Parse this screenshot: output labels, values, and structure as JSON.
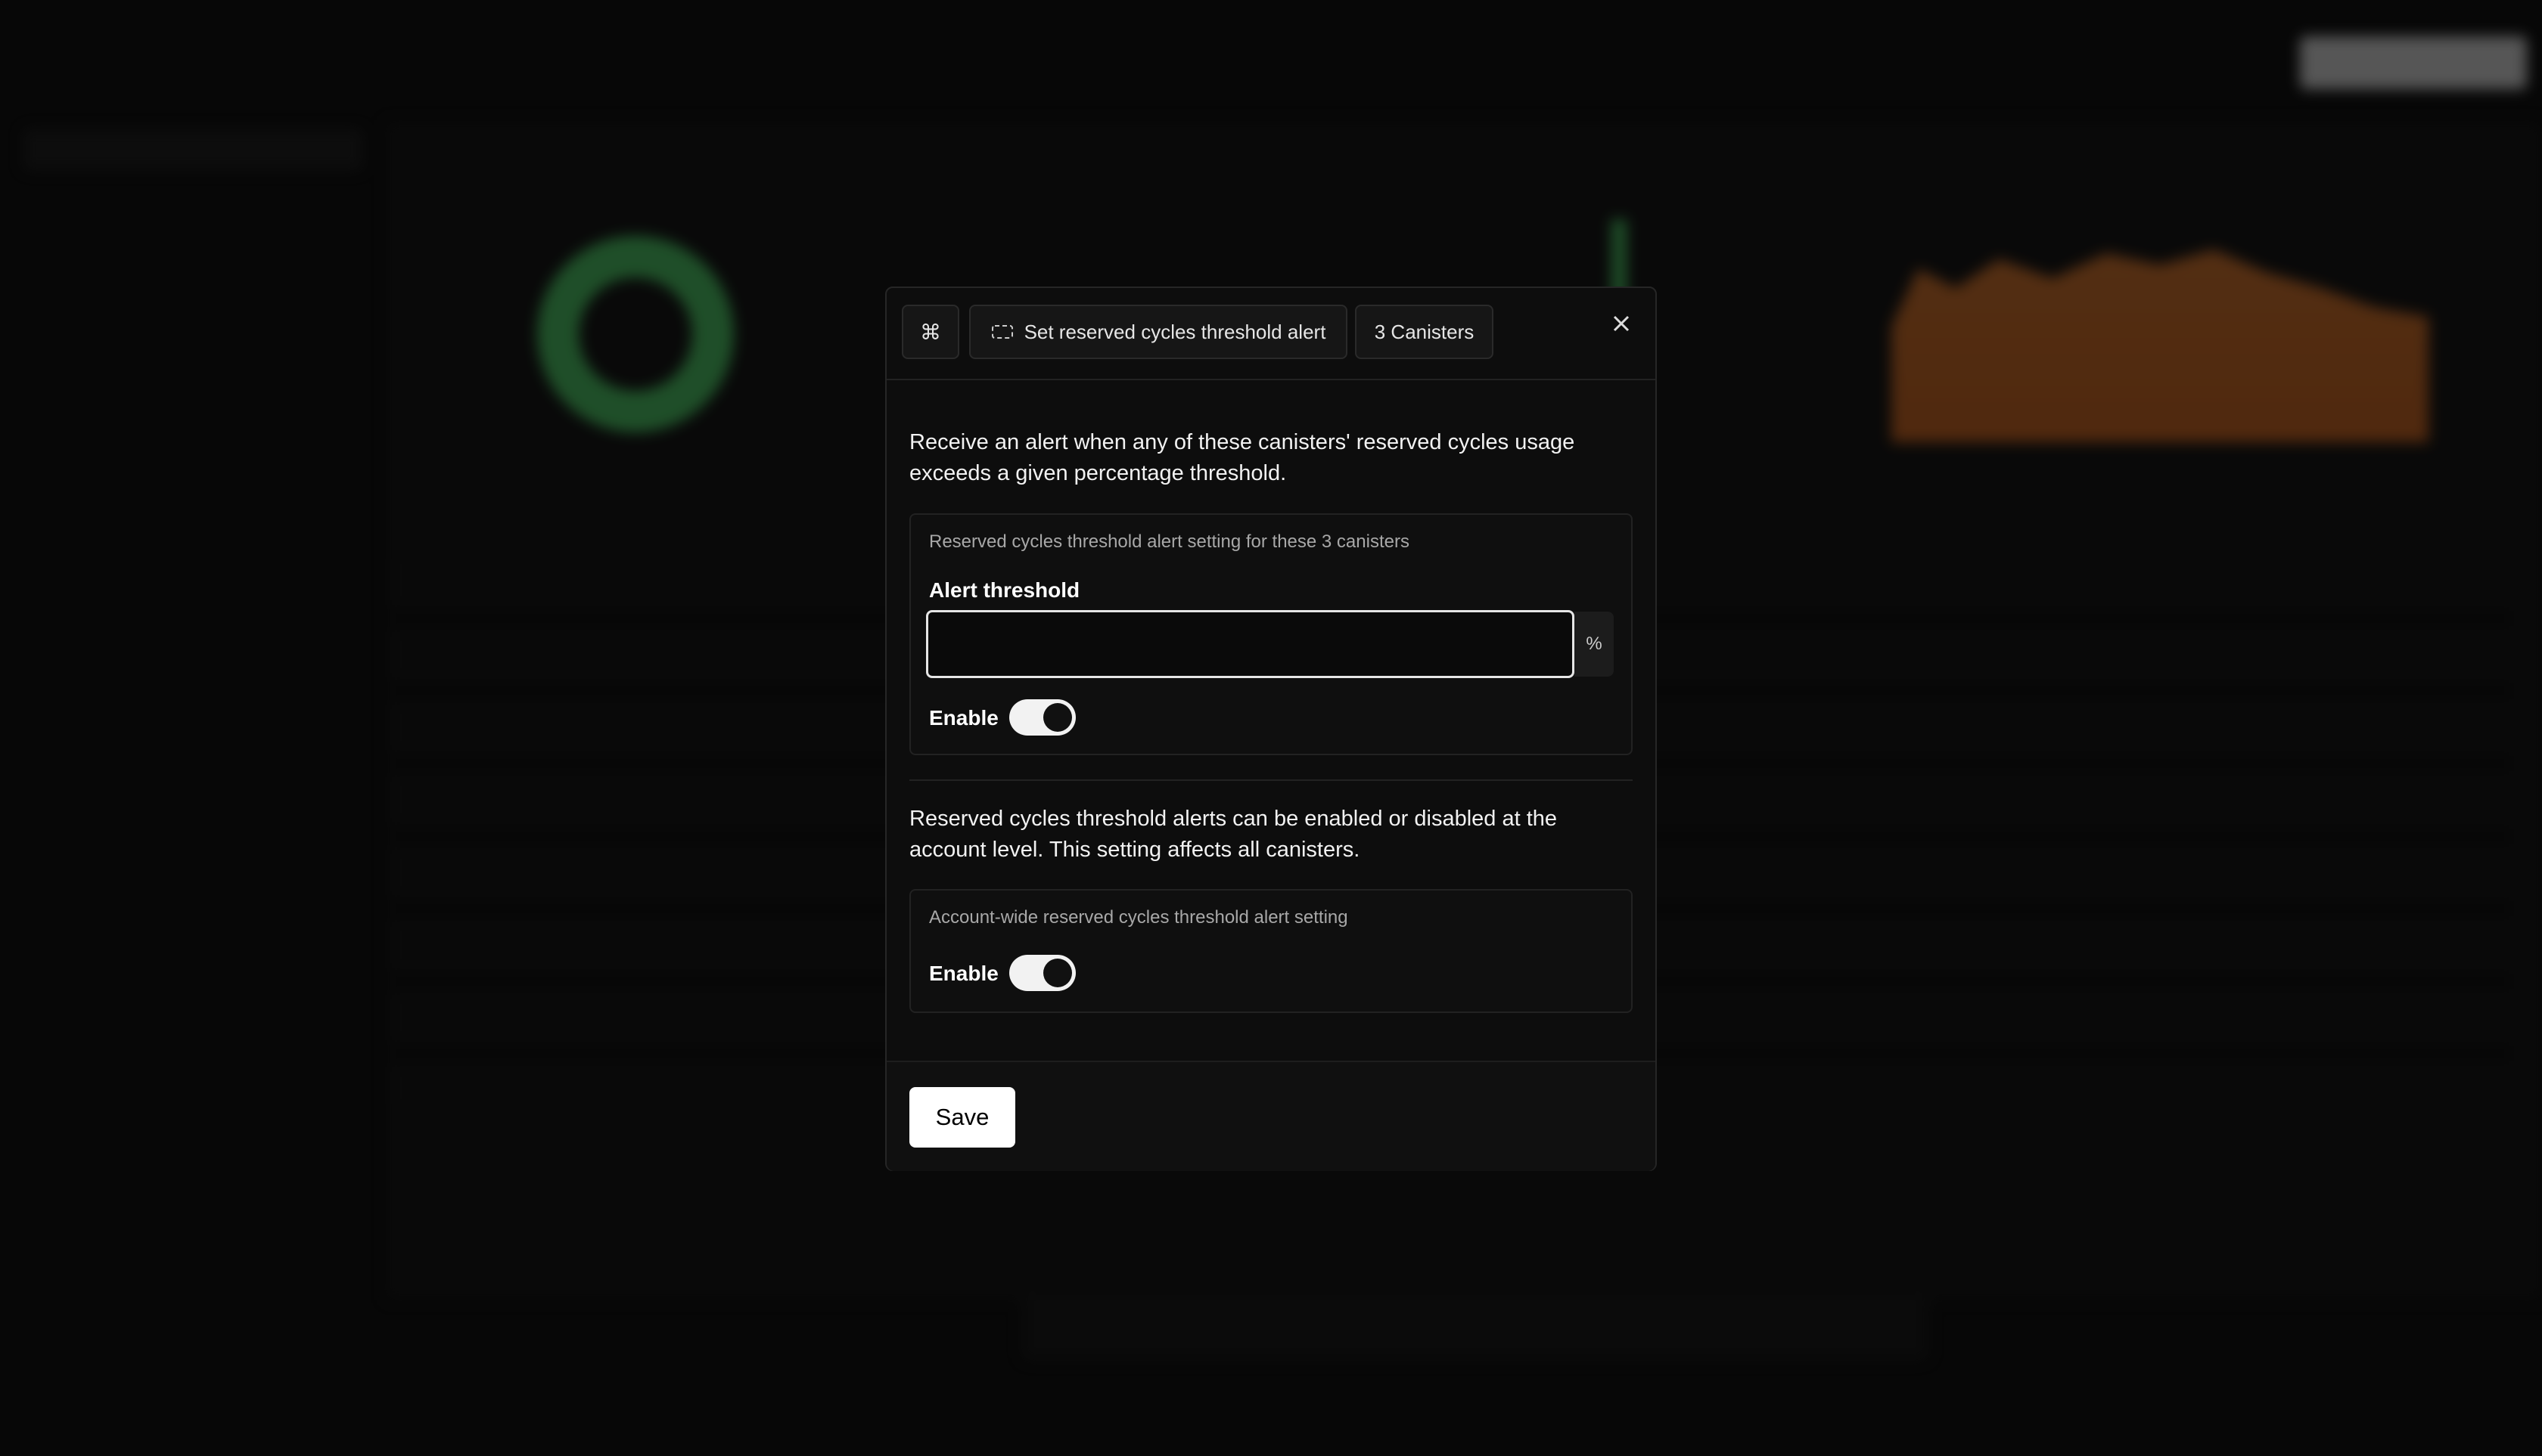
{
  "modal": {
    "header": {
      "shortcut": "⌘",
      "title": "Set reserved cycles threshold alert",
      "scope": "3 Canisters"
    },
    "description": "Receive an alert when any of these canisters' reserved cycles usage exceeds a given percentage threshold.",
    "canister_setting": {
      "caption": "Reserved cycles threshold alert setting for these 3 canisters",
      "field_label": "Alert threshold",
      "unit": "%",
      "toggle_label": "Enable"
    },
    "account_description": "Reserved cycles threshold alerts can be enabled or disabled at the account level. This setting affects all canisters.",
    "account_setting": {
      "caption": "Account-wide reserved cycles threshold alert setting",
      "toggle_label": "Enable"
    },
    "save": "Save"
  }
}
